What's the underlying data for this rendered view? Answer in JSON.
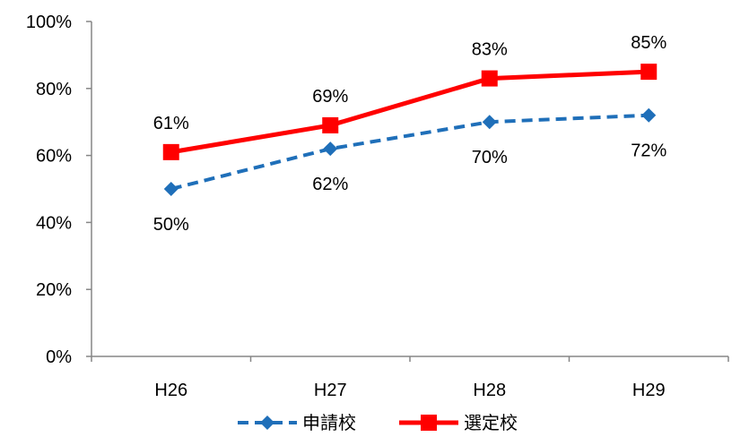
{
  "chart_data": {
    "type": "line",
    "categories": [
      "H26",
      "H27",
      "H28",
      "H29"
    ],
    "series": [
      {
        "name": "申請校",
        "values": [
          50,
          62,
          70,
          72
        ],
        "labels": [
          "50%",
          "62%",
          "70%",
          "72%"
        ],
        "color": "#1F6FB9",
        "line_style": "dashed",
        "marker": "diamond"
      },
      {
        "name": "選定校",
        "values": [
          61,
          69,
          83,
          85
        ],
        "labels": [
          "61%",
          "69%",
          "83%",
          "85%"
        ],
        "color": "#FF0000",
        "line_style": "solid",
        "marker": "square"
      }
    ],
    "y_ticks": [
      "0%",
      "20%",
      "40%",
      "60%",
      "80%",
      "100%"
    ],
    "ylim": [
      0,
      100
    ],
    "title": "",
    "xlabel": "",
    "ylabel": "",
    "grid": false,
    "legend_position": "bottom"
  }
}
